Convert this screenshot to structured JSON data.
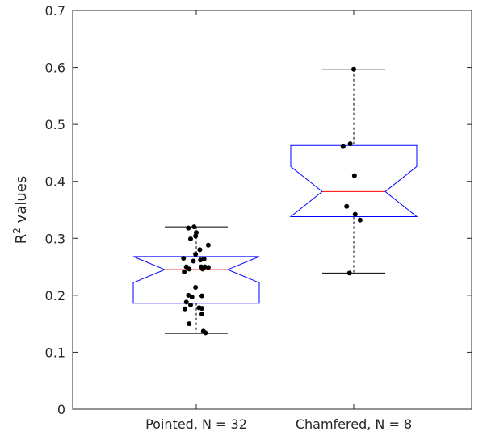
{
  "chart_data": {
    "type": "boxplot",
    "ylabel": "R",
    "ylabel_sup": "2",
    "ylabel_rest": " values",
    "ylim": [
      0,
      0.7
    ],
    "yticks": [
      "0",
      "0.1",
      "0.2",
      "0.3",
      "0.4",
      "0.5",
      "0.6",
      "0.7"
    ],
    "grid": false,
    "categories": [
      "Pointed, N = 32",
      "Chamfered, N = 8"
    ],
    "boxes": [
      {
        "category": "Pointed, N = 32",
        "q1": 0.186,
        "median": 0.245,
        "q3": 0.268,
        "notch_low": 0.222,
        "notch_high": 0.268,
        "whisker_low": 0.133,
        "whisker_high": 0.32,
        "points": [
          {
            "x": -0.11,
            "y": 0.318
          },
          {
            "x": -0.03,
            "y": 0.32
          },
          {
            "x": -0.01,
            "y": 0.304
          },
          {
            "x": 0.0,
            "y": 0.31
          },
          {
            "x": -0.08,
            "y": 0.299
          },
          {
            "x": 0.17,
            "y": 0.288
          },
          {
            "x": 0.05,
            "y": 0.28
          },
          {
            "x": -0.01,
            "y": 0.272
          },
          {
            "x": -0.18,
            "y": 0.265
          },
          {
            "x": 0.06,
            "y": 0.262
          },
          {
            "x": 0.11,
            "y": 0.264
          },
          {
            "x": -0.04,
            "y": 0.26
          },
          {
            "x": -0.14,
            "y": 0.25
          },
          {
            "x": 0.07,
            "y": 0.25
          },
          {
            "x": 0.12,
            "y": 0.25
          },
          {
            "x": 0.17,
            "y": 0.249
          },
          {
            "x": -0.1,
            "y": 0.246
          },
          {
            "x": 0.09,
            "y": 0.246
          },
          {
            "x": -0.17,
            "y": 0.241
          },
          {
            "x": -0.01,
            "y": 0.214
          },
          {
            "x": -0.11,
            "y": 0.2
          },
          {
            "x": -0.06,
            "y": 0.197
          },
          {
            "x": 0.08,
            "y": 0.199
          },
          {
            "x": -0.14,
            "y": 0.188
          },
          {
            "x": -0.08,
            "y": 0.183
          },
          {
            "x": 0.04,
            "y": 0.178
          },
          {
            "x": -0.16,
            "y": 0.176
          },
          {
            "x": 0.08,
            "y": 0.177
          },
          {
            "x": 0.08,
            "y": 0.167
          },
          {
            "x": -0.1,
            "y": 0.15
          },
          {
            "x": 0.1,
            "y": 0.137
          },
          {
            "x": 0.13,
            "y": 0.134
          }
        ]
      },
      {
        "category": "Chamfered, N = 8",
        "q1": 0.338,
        "median": 0.382,
        "q3": 0.463,
        "notch_low": 0.338,
        "notch_high": 0.426,
        "whisker_low": 0.239,
        "whisker_high": 0.597,
        "points": [
          {
            "x": 0.0,
            "y": 0.597
          },
          {
            "x": -0.05,
            "y": 0.466
          },
          {
            "x": -0.15,
            "y": 0.461
          },
          {
            "x": 0.01,
            "y": 0.41
          },
          {
            "x": -0.1,
            "y": 0.356
          },
          {
            "x": 0.02,
            "y": 0.342
          },
          {
            "x": 0.09,
            "y": 0.332
          },
          {
            "x": -0.06,
            "y": 0.239
          }
        ]
      }
    ],
    "colors": {
      "box": "#0000ff",
      "median": "#ff0000",
      "whisker": "#000000",
      "point": "#000000",
      "axes": "#262626"
    }
  }
}
